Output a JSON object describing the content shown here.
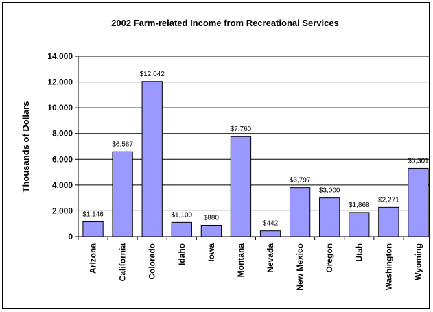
{
  "chart_data": {
    "type": "bar",
    "title": "2002 Farm-related Income from Recreational Services",
    "ylabel": "Thousands of Dollars",
    "xlabel": "",
    "ylim": [
      0,
      14000
    ],
    "yticks": [
      "0",
      "2,000",
      "4,000",
      "6,000",
      "8,000",
      "10,000",
      "12,000",
      "14,000"
    ],
    "grid": true,
    "bar_color": "#9999ff",
    "categories": [
      "Arizona",
      "California",
      "Colorado",
      "Idaho",
      "Iowa",
      "Montana",
      "Nevada",
      "New Mexico",
      "Oregon",
      "Utah",
      "Washington",
      "Wyoming"
    ],
    "values": [
      1146,
      6587,
      12042,
      1100,
      880,
      7760,
      442,
      3797,
      3000,
      1868,
      2271,
      5301
    ],
    "data_labels": [
      "$1,146",
      "$6,587",
      "$12,042",
      "$1,100",
      "$880",
      "$7,760",
      "$442",
      "$3,797",
      "$3,000",
      "$1,868",
      "$2,271",
      "$5,301"
    ]
  }
}
